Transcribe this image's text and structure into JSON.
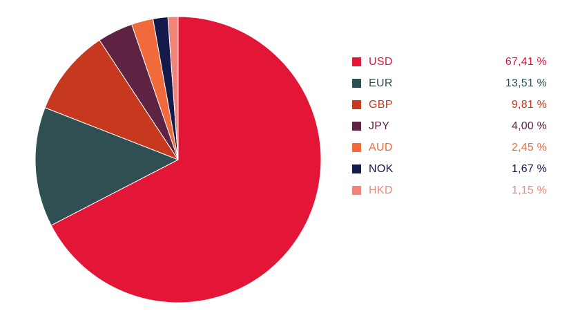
{
  "chart_data": {
    "type": "pie",
    "title": "",
    "slices": [
      {
        "label": "USD",
        "value": 67.41,
        "display": "67,41 %",
        "color": "#e31637"
      },
      {
        "label": "EUR",
        "value": 13.51,
        "display": "13,51 %",
        "color": "#304f53"
      },
      {
        "label": "GBP",
        "value": 9.81,
        "display": "9,81 %",
        "color": "#c7391e"
      },
      {
        "label": "JPY",
        "value": 4.0,
        "display": "4,00 %",
        "color": "#5e2242"
      },
      {
        "label": "AUD",
        "value": 2.45,
        "display": "2,45 %",
        "color": "#f06a3c"
      },
      {
        "label": "NOK",
        "value": 1.67,
        "display": "1,67 %",
        "color": "#141a4a"
      },
      {
        "label": "HKD",
        "value": 1.15,
        "display": "1,15 %",
        "color": "#f2857a"
      }
    ],
    "legend_position": "right",
    "start_direction": "top",
    "direction": "clockwise"
  }
}
